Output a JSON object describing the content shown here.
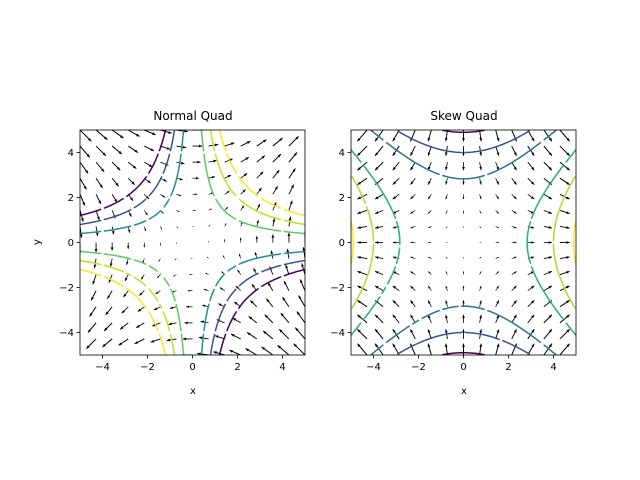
{
  "chart_data": [
    {
      "type": "contour+quiver",
      "title": "Normal Quad",
      "xlabel": "x",
      "ylabel": "y",
      "xlim": [
        -5,
        5
      ],
      "ylim": [
        -5,
        5
      ],
      "xticks": [
        -4,
        -2,
        0,
        2,
        4
      ],
      "yticks": [
        -4,
        -2,
        0,
        2,
        4
      ],
      "field": "normal",
      "levels": [
        -6,
        -4,
        -2,
        2,
        4,
        6
      ],
      "level_colors": [
        "#440154",
        "#3b528b",
        "#21918c",
        "#5ec962",
        "#c2df23",
        "#fde725"
      ],
      "grid": false
    },
    {
      "type": "contour+quiver",
      "title": "Skew Quad",
      "xlabel": "x",
      "ylabel": "",
      "xlim": [
        -5,
        5
      ],
      "ylim": [
        -5,
        5
      ],
      "xticks": [
        -4,
        -2,
        0,
        2,
        4
      ],
      "yticks": [
        -4,
        -2,
        0,
        2,
        4
      ],
      "field": "skew",
      "levels": [
        -12,
        -8,
        -4,
        4,
        8,
        12
      ],
      "level_colors": [
        "#440154",
        "#3b528b",
        "#2c728e",
        "#28ae80",
        "#addc30",
        "#fde725"
      ],
      "grid": false
    }
  ]
}
